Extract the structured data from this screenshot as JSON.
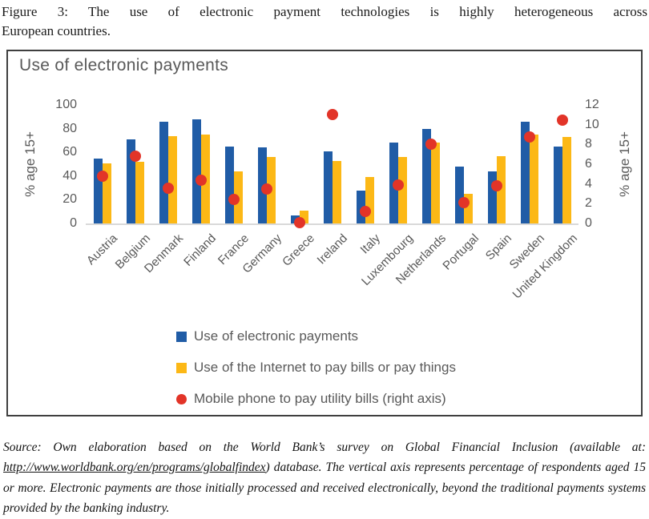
{
  "figure_caption": {
    "line1": "Figure 3: The use of electronic payment technologies is highly heterogeneous across",
    "line2": "European countries."
  },
  "chart_data": {
    "type": "bar",
    "title": "Use of electronic payments",
    "categories": [
      "Austria",
      "Belgium",
      "Denmark",
      "Finland",
      "France",
      "Germany",
      "Greece",
      "Ireland",
      "Italy",
      "Luxembourg",
      "Netherlands",
      "Portugal",
      "Spain",
      "Sweden",
      "United Kingdom"
    ],
    "series": [
      {
        "name": "Use of electronic payments",
        "type": "bar",
        "axis": "left",
        "color": "#205ca6",
        "values": [
          55,
          71,
          86,
          88,
          65,
          64,
          7,
          61,
          28,
          68,
          80,
          48,
          44,
          86,
          65
        ]
      },
      {
        "name": "Use of the Internet to pay bills or pay things",
        "type": "bar",
        "axis": "left",
        "color": "#fcb816",
        "values": [
          51,
          52,
          74,
          75,
          44,
          56,
          11,
          53,
          39,
          56,
          68,
          25,
          57,
          75,
          73
        ]
      },
      {
        "name": "Mobile phone to pay utility bills (right axis)",
        "type": "scatter",
        "axis": "right",
        "color": "#e23428",
        "values": [
          4.8,
          6.8,
          3.6,
          4.4,
          2.4,
          3.5,
          0.1,
          11.0,
          1.2,
          3.9,
          8.0,
          2.1,
          3.8,
          8.8,
          10.5
        ]
      }
    ],
    "left_axis": {
      "label": "% age 15+",
      "ticks": [
        0,
        20,
        40,
        60,
        80,
        100
      ],
      "max": 100
    },
    "right_axis": {
      "label": "% age 15+",
      "ticks": [
        0,
        2,
        4,
        6,
        8,
        10,
        12
      ],
      "max": 12
    },
    "legend_position": "bottom",
    "grid": false
  },
  "source_note": {
    "prefix": "Source: Own elaboration based on the World Bank’s survey on Global Financial Inclusion (available at: ",
    "url": "http://www.worldbank.org/en/programs/globalfindex",
    "suffix": ") database. The vertical axis represents percentage of respondents aged 15 or more. Electronic payments are those initially processed and received electronically, beyond the traditional payments systems provided by the banking industry."
  }
}
